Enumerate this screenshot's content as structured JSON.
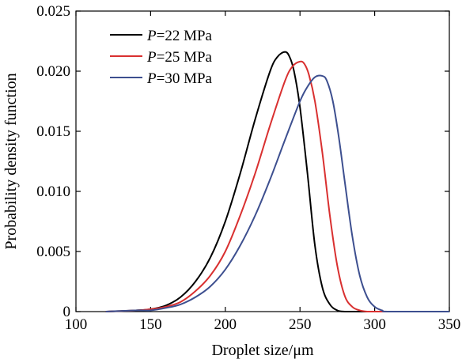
{
  "chart_data": {
    "type": "line",
    "title": "",
    "xlabel": "Droplet size/μm",
    "ylabel": "Probability density function",
    "xlim": [
      100,
      350
    ],
    "ylim": [
      0,
      0.025
    ],
    "x_ticks": [
      "100",
      "150",
      "200",
      "250",
      "300",
      "350"
    ],
    "y_ticks": [
      "0",
      "0.005",
      "0.010",
      "0.015",
      "0.020",
      "0.025"
    ],
    "grid": false,
    "legend_position": "top-left",
    "series": [
      {
        "name": "P=22 MPa",
        "label_var": "P",
        "label_rest": "=22 MPa",
        "color": "#000000",
        "x": [
          120,
          140,
          150,
          160,
          170,
          180,
          190,
          200,
          210,
          220,
          230,
          235,
          240,
          243,
          246,
          250,
          255,
          260,
          265,
          270,
          275,
          280,
          285,
          290,
          300,
          320,
          350
        ],
        "y": [
          0,
          0.0001,
          0.0002,
          0.0005,
          0.0012,
          0.0025,
          0.0045,
          0.0075,
          0.0115,
          0.016,
          0.02,
          0.0212,
          0.0216,
          0.0212,
          0.02,
          0.017,
          0.0115,
          0.0055,
          0.002,
          0.0006,
          0.0001,
          0,
          0,
          0,
          0,
          0,
          0
        ]
      },
      {
        "name": "P=25 MPa",
        "label_var": "P",
        "label_rest": "=25 MPa",
        "color": "#d93030",
        "x": [
          120,
          140,
          150,
          160,
          170,
          180,
          190,
          200,
          210,
          220,
          230,
          240,
          245,
          250,
          253,
          256,
          260,
          265,
          270,
          275,
          280,
          285,
          290,
          295,
          300,
          310,
          350
        ],
        "y": [
          0,
          0.0001,
          0.0002,
          0.0004,
          0.0008,
          0.0017,
          0.003,
          0.005,
          0.008,
          0.0115,
          0.0155,
          0.0192,
          0.0204,
          0.0208,
          0.0206,
          0.0197,
          0.0175,
          0.0132,
          0.008,
          0.0038,
          0.0013,
          0.0004,
          0.0001,
          0,
          0,
          0,
          0
        ]
      },
      {
        "name": "P=30 MPa",
        "label_var": "P",
        "label_rest": "=30 MPa",
        "color": "#3d4f8f",
        "x": [
          120,
          140,
          150,
          160,
          170,
          180,
          190,
          200,
          210,
          220,
          230,
          240,
          250,
          255,
          260,
          265,
          268,
          272,
          276,
          280,
          285,
          290,
          295,
          300,
          305,
          310,
          350
        ],
        "y": [
          0,
          0.0001,
          0.0001,
          0.0003,
          0.0006,
          0.0012,
          0.0021,
          0.0035,
          0.0055,
          0.008,
          0.011,
          0.0143,
          0.0175,
          0.0187,
          0.0195,
          0.0196,
          0.0192,
          0.0175,
          0.0145,
          0.0108,
          0.0063,
          0.003,
          0.0012,
          0.0004,
          0.0001,
          0,
          0
        ]
      }
    ]
  }
}
